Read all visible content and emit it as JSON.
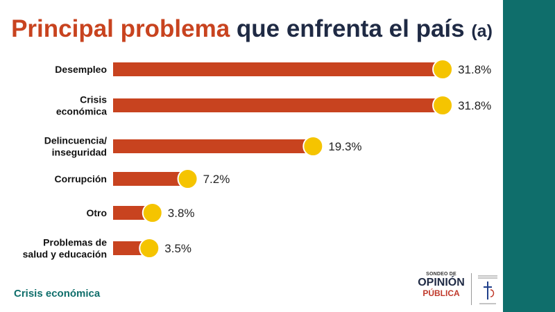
{
  "title": {
    "highlight": "Principal problema",
    "rest": " que enfrenta el país",
    "suffix": "(a)"
  },
  "footer_label": "Crisis económica",
  "logo": {
    "line1": "SONDEO DE",
    "line2": "OPINIÓN",
    "line3": "PÚBLICA"
  },
  "colors": {
    "bar": "#c8431f",
    "dot": "#f5c400",
    "title_highlight": "#c8431f",
    "title_dark": "#1f2a44",
    "teal": "#0f6e6b",
    "footer_text": "#0f6e6b"
  },
  "chart_data": {
    "type": "bar",
    "orientation": "horizontal",
    "categories": [
      [
        "Desempleo"
      ],
      [
        "Crisis",
        "económica"
      ],
      [
        "Delincuencia/",
        "inseguridad"
      ],
      [
        "Corrupción"
      ],
      [
        "Otro"
      ],
      [
        "Problemas de",
        "salud y educación"
      ]
    ],
    "values": [
      31.8,
      31.8,
      19.3,
      7.2,
      3.8,
      3.5
    ],
    "value_labels": [
      "31.8%",
      "31.8%",
      "19.3%",
      "7.2%",
      "3.8%",
      "3.5%"
    ],
    "xlim": [
      0,
      33
    ]
  }
}
